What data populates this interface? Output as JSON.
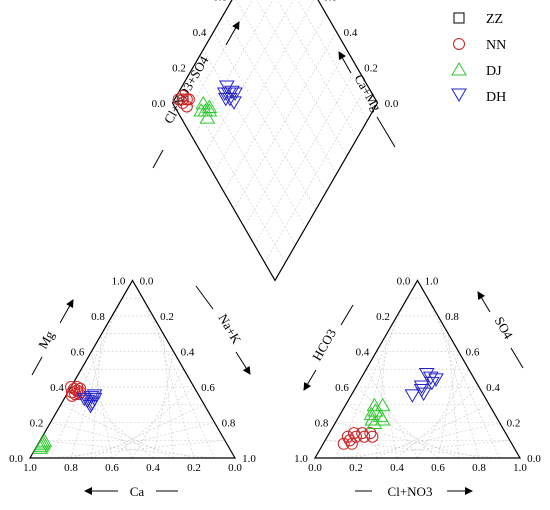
{
  "chart_data": {
    "type": "scatter",
    "subtype": "piper-diagram",
    "ticks": [
      "0.0",
      "0.2",
      "0.4",
      "0.6",
      "0.8",
      "1.0"
    ],
    "axes": {
      "cation_left": "Mg",
      "cation_bottom": "Ca",
      "cation_right": "Na+K",
      "anion_left": "HCO3",
      "anion_bottom": "Cl+NO3",
      "anion_right": "SO4",
      "diamond_left": "Cl+NO3+SO4",
      "diamond_right": "Ca+Mg"
    },
    "legend_position": "top-right",
    "grid": true,
    "series": [
      {
        "name": "ZZ",
        "marker": "square",
        "color": "#000000",
        "cations": [],
        "anions": [],
        "diamond": []
      },
      {
        "name": "NN",
        "marker": "circle",
        "color": "#cc2222",
        "cations": [
          [
            0.58,
            0.38
          ],
          [
            0.6,
            0.36
          ],
          [
            0.57,
            0.4
          ],
          [
            0.59,
            0.39
          ],
          [
            0.61,
            0.37
          ],
          [
            0.56,
            0.39
          ],
          [
            0.6,
            0.4
          ],
          [
            0.58,
            0.36
          ],
          [
            0.62,
            0.35
          ],
          [
            0.57,
            0.37
          ]
        ],
        "anions": [
          [
            0.1,
            0.12
          ],
          [
            0.12,
            0.1
          ],
          [
            0.14,
            0.12
          ],
          [
            0.1,
            0.08
          ],
          [
            0.16,
            0.14
          ],
          [
            0.18,
            0.12
          ],
          [
            0.12,
            0.14
          ],
          [
            0.2,
            0.14
          ],
          [
            0.14,
            0.08
          ],
          [
            0.22,
            0.12
          ]
        ],
        "diamond": [
          [
            0.04,
            0.02
          ],
          [
            0.06,
            0.04
          ],
          [
            0.08,
            0.06
          ],
          [
            0.05,
            0.05
          ],
          [
            0.07,
            0.03
          ],
          [
            0.09,
            0.07
          ],
          [
            0.06,
            0.08
          ]
        ]
      },
      {
        "name": "DJ",
        "marker": "triangle-up",
        "color": "#2ec82e",
        "cations": [
          [
            0.88,
            0.1
          ],
          [
            0.9,
            0.08
          ],
          [
            0.92,
            0.06
          ],
          [
            0.89,
            0.09
          ],
          [
            0.91,
            0.07
          ]
        ],
        "anions": [
          [
            0.15,
            0.25
          ],
          [
            0.17,
            0.22
          ],
          [
            0.19,
            0.2
          ],
          [
            0.16,
            0.27
          ],
          [
            0.2,
            0.24
          ],
          [
            0.18,
            0.3
          ],
          [
            0.22,
            0.22
          ],
          [
            0.14,
            0.3
          ]
        ],
        "diamond": [
          [
            0.12,
            0.16
          ],
          [
            0.14,
            0.18
          ],
          [
            0.16,
            0.2
          ],
          [
            0.13,
            0.21
          ],
          [
            0.15,
            0.15
          ],
          [
            0.17,
            0.19
          ]
        ]
      },
      {
        "name": "DH",
        "marker": "triangle-down",
        "color": "#2222cc",
        "cations": [
          [
            0.52,
            0.33
          ],
          [
            0.54,
            0.31
          ],
          [
            0.56,
            0.32
          ],
          [
            0.53,
            0.34
          ],
          [
            0.55,
            0.3
          ],
          [
            0.57,
            0.33
          ],
          [
            0.51,
            0.35
          ],
          [
            0.56,
            0.29
          ]
        ],
        "anions": [
          [
            0.3,
            0.35
          ],
          [
            0.32,
            0.4
          ],
          [
            0.34,
            0.45
          ],
          [
            0.33,
            0.38
          ],
          [
            0.36,
            0.42
          ],
          [
            0.31,
            0.47
          ],
          [
            0.35,
            0.36
          ],
          [
            0.37,
            0.44
          ]
        ],
        "diamond": [
          [
            0.28,
            0.23
          ],
          [
            0.3,
            0.25
          ],
          [
            0.32,
            0.26
          ],
          [
            0.29,
            0.27
          ],
          [
            0.31,
            0.22
          ],
          [
            0.33,
            0.28
          ],
          [
            0.3,
            0.3
          ],
          [
            0.27,
            0.25
          ]
        ]
      }
    ]
  }
}
